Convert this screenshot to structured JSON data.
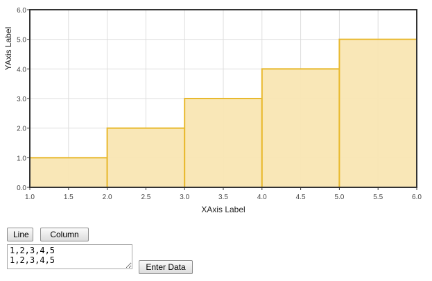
{
  "chart_data": {
    "type": "bar",
    "subtype": "histogram-column",
    "title": "",
    "xlabel": "XAxis Label",
    "ylabel": "YAxis Label",
    "xlim": [
      1.0,
      6.0
    ],
    "ylim": [
      0.0,
      6.0
    ],
    "x_ticks": [
      "1.0",
      "1.5",
      "2.0",
      "2.5",
      "3.0",
      "3.5",
      "4.0",
      "4.5",
      "5.0",
      "5.5",
      "6.0"
    ],
    "y_ticks": [
      "0.0",
      "1.0",
      "2.0",
      "3.0",
      "4.0",
      "5.0",
      "6.0"
    ],
    "bins": [
      {
        "x0": 1.0,
        "x1": 2.0,
        "value": 1
      },
      {
        "x0": 2.0,
        "x1": 3.0,
        "value": 2
      },
      {
        "x0": 3.0,
        "x1": 4.0,
        "value": 3
      },
      {
        "x0": 4.0,
        "x1": 5.0,
        "value": 4
      },
      {
        "x0": 5.0,
        "x1": 6.0,
        "value": 5
      }
    ],
    "grid": true,
    "colors": {
      "fill": "#f9e6b3",
      "stroke": "#e8b92e",
      "grid": "#dddddd",
      "frame": "#333333"
    }
  },
  "controls": {
    "line_label": "Line",
    "column_label": "Column",
    "data_value": "1,2,3,4,5\n1,2,3,4,5",
    "enter_label": "Enter Data"
  }
}
